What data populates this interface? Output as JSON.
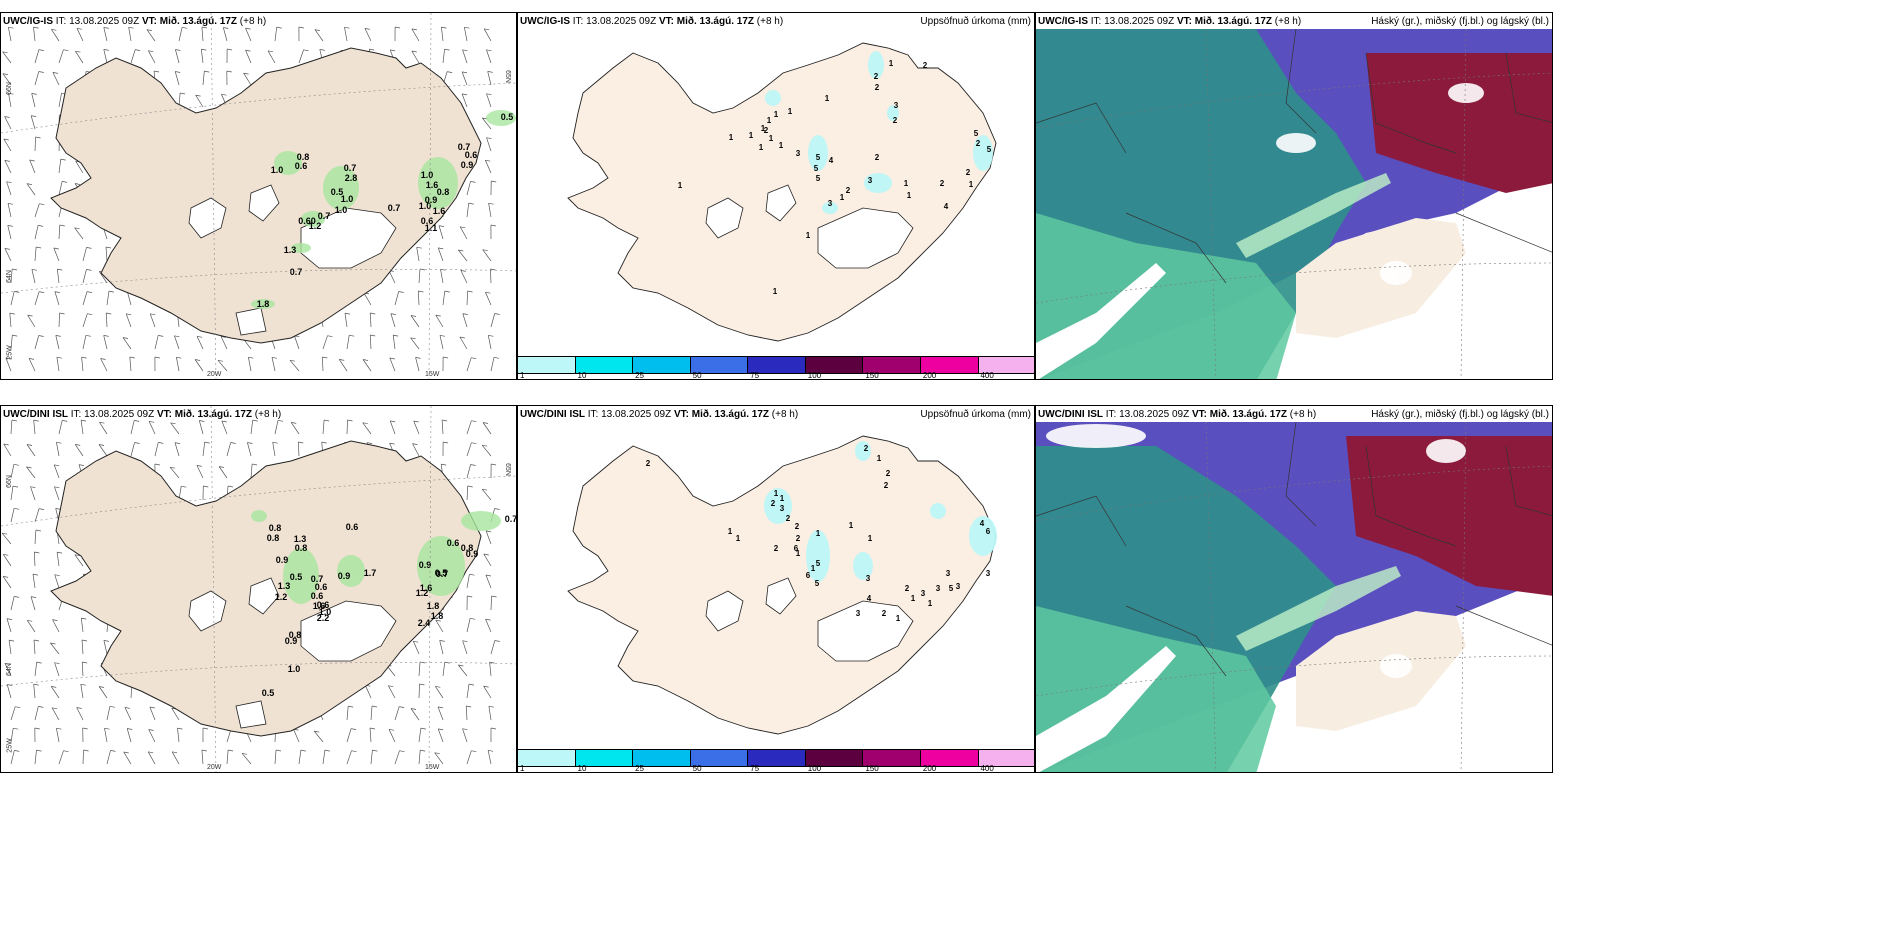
{
  "panels": {
    "p1": {
      "model": "UWC/IG-IS",
      "it": "13.08.2025 09Z",
      "vt": "Mið. 13.ágú. 17Z",
      "lead": "(+8 h)"
    },
    "p2": {
      "model": "UWC/IG-IS",
      "it": "13.08.2025 09Z",
      "vt": "Mið. 13.ágú. 17Z",
      "lead": "(+8 h)",
      "title_right": "Uppsöfnuð úrkoma (mm)"
    },
    "p3": {
      "model": "UWC/IG-IS",
      "it": "13.08.2025 09Z",
      "vt": "Mið. 13.ágú. 17Z",
      "lead": "(+8 h)",
      "title_right": "Háský (gr.), miðský (fj.bl.) og lágský (bl.)"
    },
    "p4": {
      "model": "UWC/DINI ISL",
      "it": "13.08.2025 09Z",
      "vt": "Mið. 13.ágú. 17Z",
      "lead": "(+8 h)"
    },
    "p5": {
      "model": "UWC/DINI ISL",
      "it": "13.08.2025 09Z",
      "vt": "Mið. 13.ágú. 17Z",
      "lead": "(+8 h)",
      "title_right": "Uppsöfnuð úrkoma (mm)"
    },
    "p6": {
      "model": "UWC/DINI ISL",
      "it": "13.08.2025 09Z",
      "vt": "Mið. 13.ágú. 17Z",
      "lead": "(+8 h)",
      "title_right": "Háský (gr.), miðský (fj.bl.) og lágský (bl.)"
    }
  },
  "labels": {
    "it": "IT:",
    "vt": "VT:"
  },
  "axes": {
    "lat66": "66N",
    "lat64": "64N",
    "lon20": "20W",
    "lon15": "15W",
    "lon25": "25W",
    "lat65": "65N"
  },
  "colorbar": {
    "ticks": [
      "1",
      "10",
      "25",
      "50",
      "75",
      "100",
      "150",
      "200",
      "400"
    ],
    "colors": [
      "#bdf7f7",
      "#00e6ee",
      "#00bfee",
      "#3a6fe8",
      "#2a2abf",
      "#5c0040",
      "#a0006e",
      "#ee00a0",
      "#f5b0ee"
    ]
  },
  "precip_values_top": [
    "0.5",
    "0.8",
    "0.6",
    "1.0",
    "0.7",
    "2.8",
    "0.5",
    "1.0",
    "1.0",
    "0.7",
    "0.60",
    "0.7",
    "1.2",
    "1.3",
    "0.7",
    "1.8",
    "0.7",
    "0.6",
    "0.9",
    "1.0",
    "1.6",
    "0.8",
    "0.9",
    "1.0",
    "1.6",
    "0.6",
    "1.1"
  ],
  "precip_values_bottom": [
    "0.7",
    "0.8",
    "0.8",
    "0.6",
    "1.3",
    "0.8",
    "0.9",
    "0.5",
    "0.7",
    "0.6",
    "0.6",
    "1.6",
    "1.0",
    "0.9",
    "1.7",
    "0.8",
    "1.0",
    "0.6",
    "1.3",
    "1.2",
    "0.5",
    "0.9",
    "0.9",
    "0.5",
    "0.7",
    "1.6",
    "1.8",
    "2.4",
    "1.8",
    "0.6",
    "0.8",
    "0.9",
    "1.2",
    "2.2"
  ],
  "accum_values_top": [
    "1",
    "2",
    "2",
    "2",
    "1",
    "1",
    "1",
    "1",
    "1",
    "1",
    "2",
    "1",
    "1",
    "1",
    "1",
    "3",
    "5",
    "4",
    "5",
    "5",
    "2",
    "3",
    "2",
    "1",
    "1",
    "3",
    "2",
    "1",
    "2",
    "1",
    "4",
    "5",
    "2",
    "5",
    "1",
    "1",
    "3",
    "2",
    "1"
  ],
  "accum_values_bottom": [
    "2",
    "2",
    "1",
    "2",
    "2",
    "1",
    "1",
    "2",
    "3",
    "2",
    "2",
    "1",
    "1",
    "2",
    "1",
    "1",
    "6",
    "5",
    "6",
    "5",
    "3",
    "4",
    "3",
    "2",
    "1",
    "1",
    "2",
    "3",
    "3",
    "3",
    "5",
    "4",
    "6",
    "3",
    "3",
    "1",
    "2",
    "1",
    "1",
    "1"
  ],
  "colors": {
    "land": "#f7ede1",
    "land_dark": "#efe2d2",
    "green": "#7ddc7f",
    "cloud_purple": "#5a4fbf",
    "cloud_teal": "#2a9d8f",
    "cloud_maroon": "#8b1a3c",
    "cloud_green": "#5ec9a0"
  }
}
